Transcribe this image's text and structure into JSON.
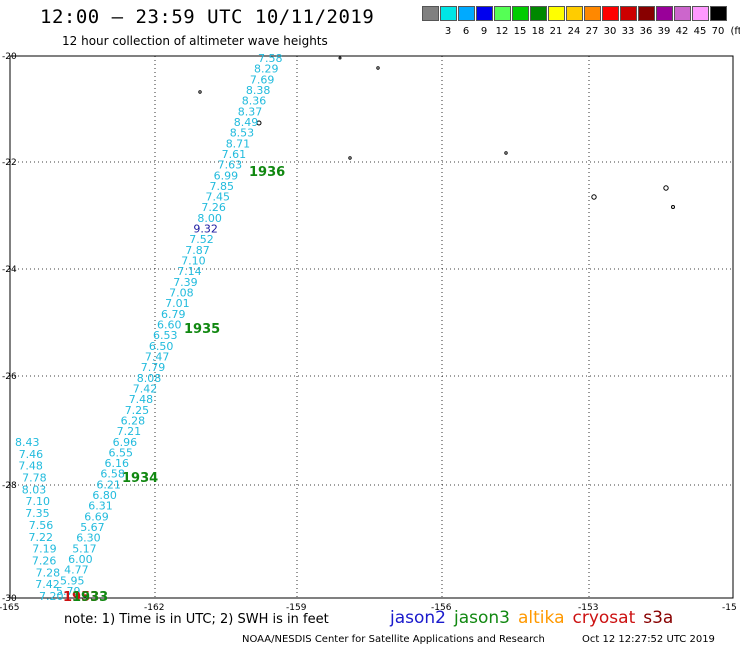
{
  "header": {
    "title": "12:00 – 23:59 UTC 10/11/2019",
    "subtitle": "12 hour collection of altimeter wave heights"
  },
  "legend": {
    "unit": "(ft)",
    "bins": [
      {
        "label": "",
        "color": "#808080"
      },
      {
        "label": "3",
        "color": "#00e5e5"
      },
      {
        "label": "6",
        "color": "#00aaff"
      },
      {
        "label": "9",
        "color": "#0000ee"
      },
      {
        "label": "12",
        "color": "#55ff55"
      },
      {
        "label": "15",
        "color": "#00cc00"
      },
      {
        "label": "18",
        "color": "#008800"
      },
      {
        "label": "21",
        "color": "#ffff00"
      },
      {
        "label": "24",
        "color": "#ffcc00"
      },
      {
        "label": "27",
        "color": "#ff8800"
      },
      {
        "label": "30",
        "color": "#ff0000"
      },
      {
        "label": "33",
        "color": "#cc0000"
      },
      {
        "label": "36",
        "color": "#880000"
      },
      {
        "label": "39",
        "color": "#990099"
      },
      {
        "label": "42",
        "color": "#cc66cc"
      },
      {
        "label": "45",
        "color": "#ff99ff"
      },
      {
        "label": "70",
        "color": "#000000"
      }
    ]
  },
  "axes": {
    "lat_ticks": [
      "-20",
      "-22",
      "-24",
      "-26",
      "-28",
      "-30"
    ],
    "lon_ticks": [
      "-165",
      "-162",
      "-159",
      "-156",
      "-153",
      "-15"
    ]
  },
  "passes": [
    {
      "time": "1936",
      "color": "#118811"
    },
    {
      "time": "1935",
      "color": "#118811"
    },
    {
      "time": "1934",
      "color": "#118811"
    },
    {
      "time": "1953",
      "color": "#cc1111"
    },
    {
      "time": "1933",
      "color": "#118811"
    }
  ],
  "track_main": {
    "values": [
      "7.58",
      "8.29",
      "7.69",
      "8.38",
      "8.36",
      "8.37",
      "8.49",
      "8.53",
      "8.71",
      "7.61",
      "7.63",
      "6.99",
      "7.85",
      "7.45",
      "7.26",
      "8.00",
      "9.32",
      "7.52",
      "7.87",
      "7.10",
      "7.14",
      "7.39",
      "7.08",
      "7.01",
      "6.79",
      "6.60",
      "6.53",
      "6.50",
      "7.47",
      "7.79",
      "8.08",
      "7.42",
      "7.48",
      "7.25",
      "6.28",
      "7.21",
      "6.96",
      "6.55",
      "6.16",
      "6.58",
      "6.21",
      "6.80",
      "6.31",
      "6.69",
      "5.67",
      "6.30",
      "5.17",
      "6.00",
      "4.77",
      "5.95",
      "5.79"
    ]
  },
  "track_second": {
    "values": [
      "8.43",
      "7.46",
      "7.48",
      "7.78",
      "8.03",
      "7.10",
      "7.35",
      "7.56",
      "7.22",
      "7.19",
      "7.26",
      "7.28",
      "7.42",
      "7.20"
    ]
  },
  "satellites": [
    {
      "name": "jason2",
      "color": "#1a1acc"
    },
    {
      "name": "jason3",
      "color": "#118811"
    },
    {
      "name": "altika",
      "color": "#ff9900"
    },
    {
      "name": "cryosat",
      "color": "#cc1111"
    },
    {
      "name": "s3a",
      "color": "#880000"
    }
  ],
  "footer": {
    "note": "note:  1) Time is in UTC; 2) SWH is in feet",
    "credit": "NOAA/NESDIS Center for Satellite Applications and Research",
    "timestamp": "Oct 12 12:27:52 UTC 2019"
  }
}
